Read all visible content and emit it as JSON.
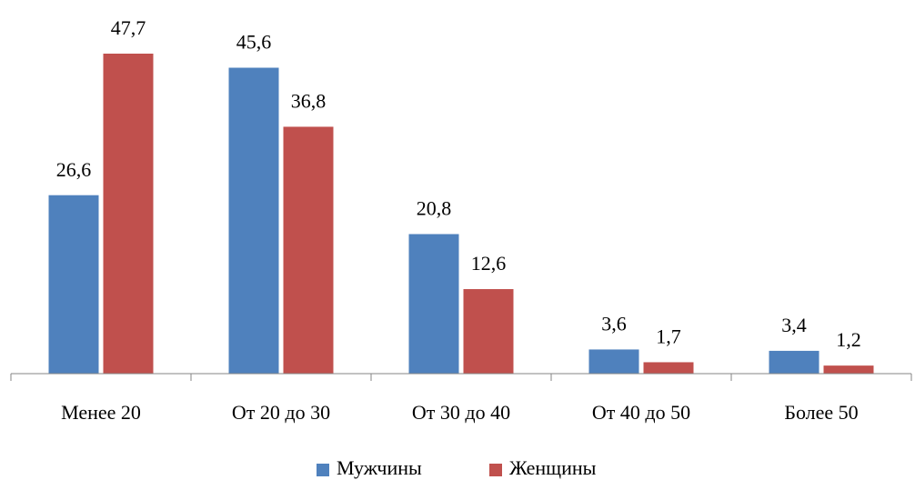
{
  "chart_data": {
    "type": "bar",
    "categories": [
      "Менее 20",
      "От 20 до 30",
      "От 30 до 40",
      "От 40 до 50",
      "Более 50"
    ],
    "series": [
      {
        "name": "Мужчины",
        "color": "#4f81bd",
        "values": [
          26.6,
          45.6,
          20.8,
          3.6,
          3.4
        ],
        "value_labels": [
          "26,6",
          "45,6",
          "20,8",
          "3,6",
          "3,4"
        ]
      },
      {
        "name": "Женщины",
        "color": "#c0504d",
        "values": [
          47.7,
          36.8,
          12.6,
          1.7,
          1.2
        ],
        "value_labels": [
          "47,7",
          "36,8",
          "12,6",
          "1,7",
          "1,2"
        ]
      }
    ],
    "legend": "bottom"
  }
}
